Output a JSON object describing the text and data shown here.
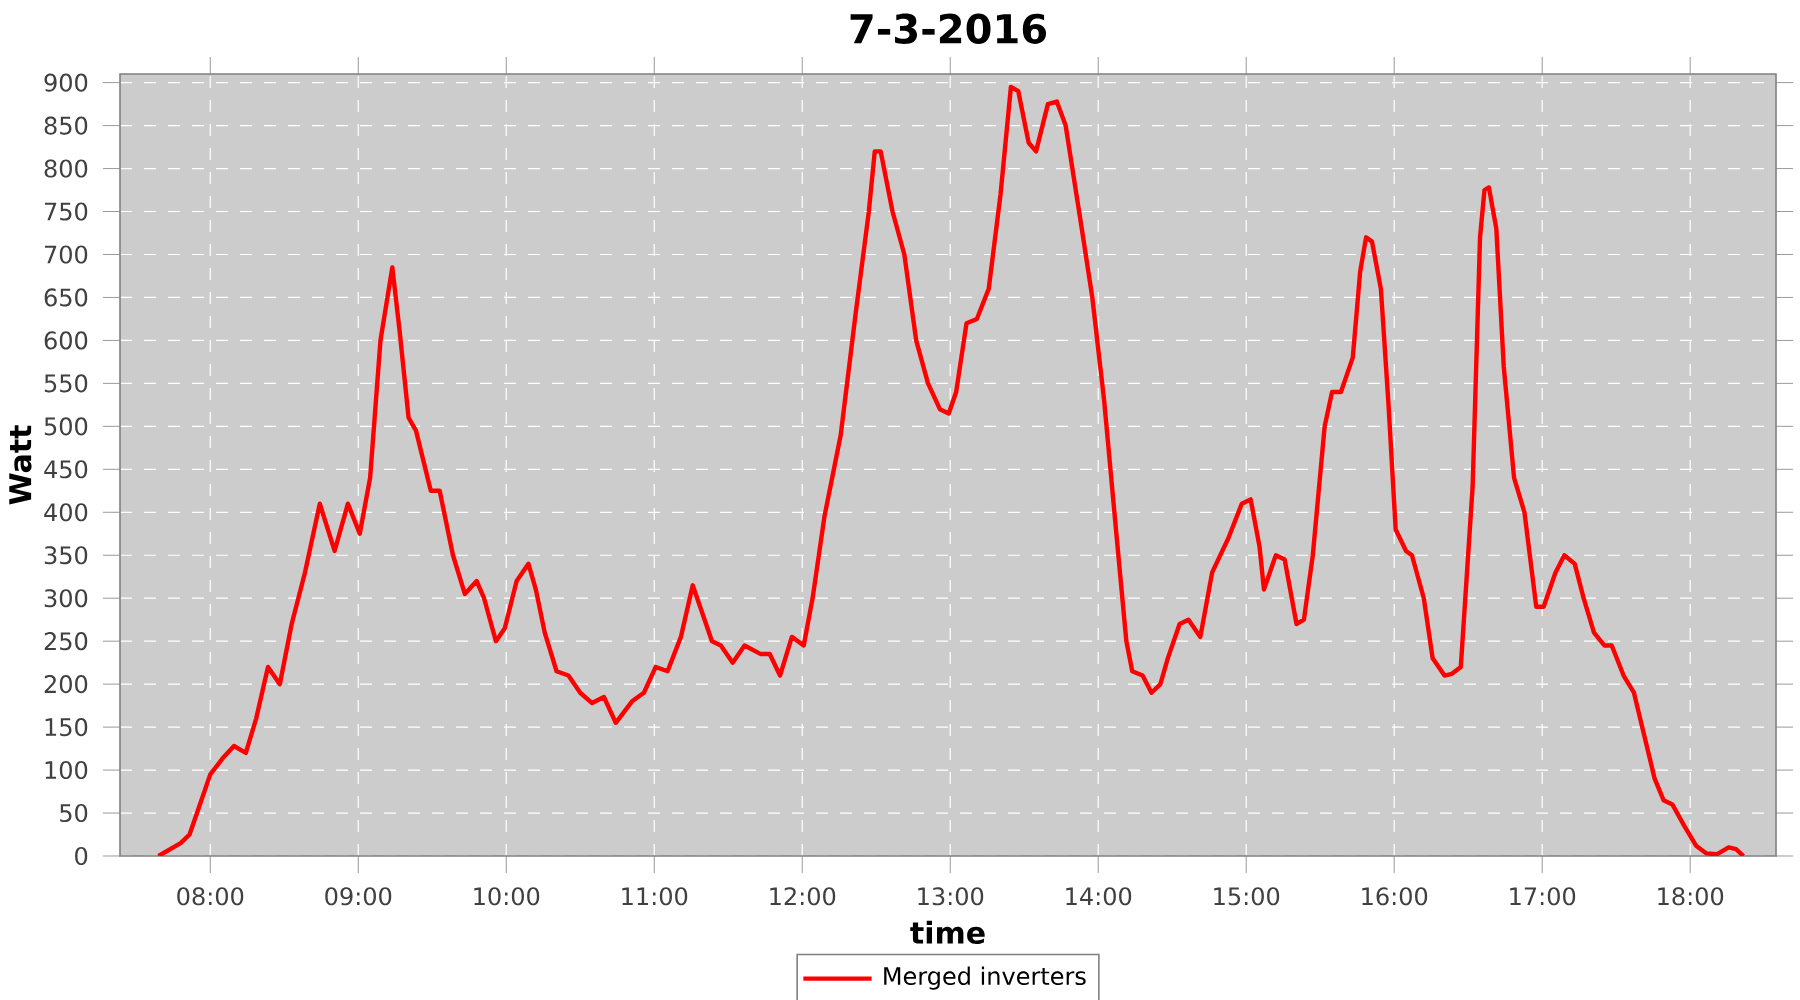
{
  "chart_data": {
    "type": "line",
    "title": "7-3-2016",
    "xlabel": "time",
    "ylabel": "Watt",
    "x": [
      7.65,
      7.8,
      7.86,
      7.93,
      8.0,
      8.09,
      8.16,
      8.24,
      8.31,
      8.39,
      8.47,
      8.55,
      8.64,
      8.74,
      8.84,
      8.93,
      9.01,
      9.08,
      9.15,
      9.23,
      9.28,
      9.34,
      9.39,
      9.49,
      9.55,
      9.64,
      9.72,
      9.8,
      9.85,
      9.93,
      9.99,
      10.07,
      10.15,
      10.2,
      10.26,
      10.34,
      10.42,
      10.5,
      10.58,
      10.66,
      10.74,
      10.85,
      10.93,
      11.01,
      11.09,
      11.18,
      11.26,
      11.31,
      11.39,
      11.45,
      11.53,
      11.61,
      11.72,
      11.78,
      11.85,
      11.93,
      12.01,
      12.07,
      12.15,
      12.26,
      12.36,
      12.45,
      12.49,
      12.53,
      12.61,
      12.69,
      12.77,
      12.85,
      12.93,
      12.99,
      13.04,
      13.11,
      13.18,
      13.26,
      13.34,
      13.41,
      13.46,
      13.53,
      13.58,
      13.66,
      13.72,
      13.78,
      13.88,
      13.96,
      14.04,
      14.12,
      14.19,
      14.23,
      14.3,
      14.36,
      14.42,
      14.47,
      14.55,
      14.61,
      14.69,
      14.77,
      14.88,
      14.97,
      15.03,
      15.09,
      15.12,
      15.2,
      15.26,
      15.34,
      15.39,
      15.45,
      15.53,
      15.58,
      15.64,
      15.72,
      15.77,
      15.81,
      15.85,
      15.91,
      15.96,
      16.01,
      16.08,
      16.12,
      16.2,
      16.26,
      16.34,
      16.39,
      16.45,
      16.53,
      16.58,
      16.61,
      16.64,
      16.69,
      16.74,
      16.81,
      16.88,
      16.96,
      17.01,
      17.09,
      17.15,
      17.22,
      17.28,
      17.35,
      17.42,
      17.47,
      17.55,
      17.62,
      17.69,
      17.76,
      17.82,
      17.88,
      17.96,
      18.04,
      18.11,
      18.18,
      18.26,
      18.31,
      18.36
    ],
    "series": [
      {
        "name": "Merged inverters",
        "color": "#ff0000",
        "values": [
          0,
          15,
          25,
          60,
          95,
          115,
          128,
          120,
          160,
          220,
          200,
          270,
          330,
          410,
          355,
          410,
          375,
          440,
          600,
          685,
          610,
          510,
          495,
          425,
          425,
          350,
          305,
          320,
          300,
          250,
          265,
          320,
          340,
          310,
          260,
          215,
          210,
          190,
          178,
          185,
          155,
          180,
          190,
          220,
          215,
          255,
          315,
          290,
          250,
          245,
          225,
          245,
          235,
          235,
          210,
          255,
          245,
          300,
          395,
          490,
          630,
          750,
          820,
          820,
          750,
          700,
          600,
          550,
          520,
          515,
          540,
          620,
          625,
          660,
          770,
          895,
          890,
          830,
          820,
          875,
          878,
          850,
          740,
          650,
          530,
          380,
          250,
          215,
          210,
          190,
          200,
          230,
          270,
          275,
          255,
          330,
          370,
          410,
          415,
          360,
          310,
          350,
          345,
          270,
          275,
          350,
          500,
          540,
          540,
          580,
          680,
          720,
          715,
          660,
          530,
          380,
          355,
          350,
          300,
          230,
          210,
          212,
          220,
          430,
          720,
          775,
          778,
          730,
          570,
          440,
          400,
          290,
          290,
          330,
          350,
          340,
          300,
          260,
          245,
          245,
          210,
          190,
          140,
          90,
          65,
          60,
          35,
          12,
          3,
          2,
          10,
          8,
          0
        ]
      }
    ],
    "xlim": [
      7.39,
      18.58
    ],
    "ylim": [
      0,
      910
    ],
    "xticks": [
      {
        "value": 8,
        "label": "08:00"
      },
      {
        "value": 9,
        "label": "09:00"
      },
      {
        "value": 10,
        "label": "10:00"
      },
      {
        "value": 11,
        "label": "11:00"
      },
      {
        "value": 12,
        "label": "12:00"
      },
      {
        "value": 13,
        "label": "13:00"
      },
      {
        "value": 14,
        "label": "14:00"
      },
      {
        "value": 15,
        "label": "15:00"
      },
      {
        "value": 16,
        "label": "16:00"
      },
      {
        "value": 17,
        "label": "17:00"
      },
      {
        "value": 18,
        "label": "18:00"
      }
    ],
    "yticks": [
      0,
      50,
      100,
      150,
      200,
      250,
      300,
      350,
      400,
      450,
      500,
      550,
      600,
      650,
      700,
      750,
      800,
      850,
      900
    ],
    "grid": true,
    "legend": "bottom",
    "line_style": "solid"
  }
}
